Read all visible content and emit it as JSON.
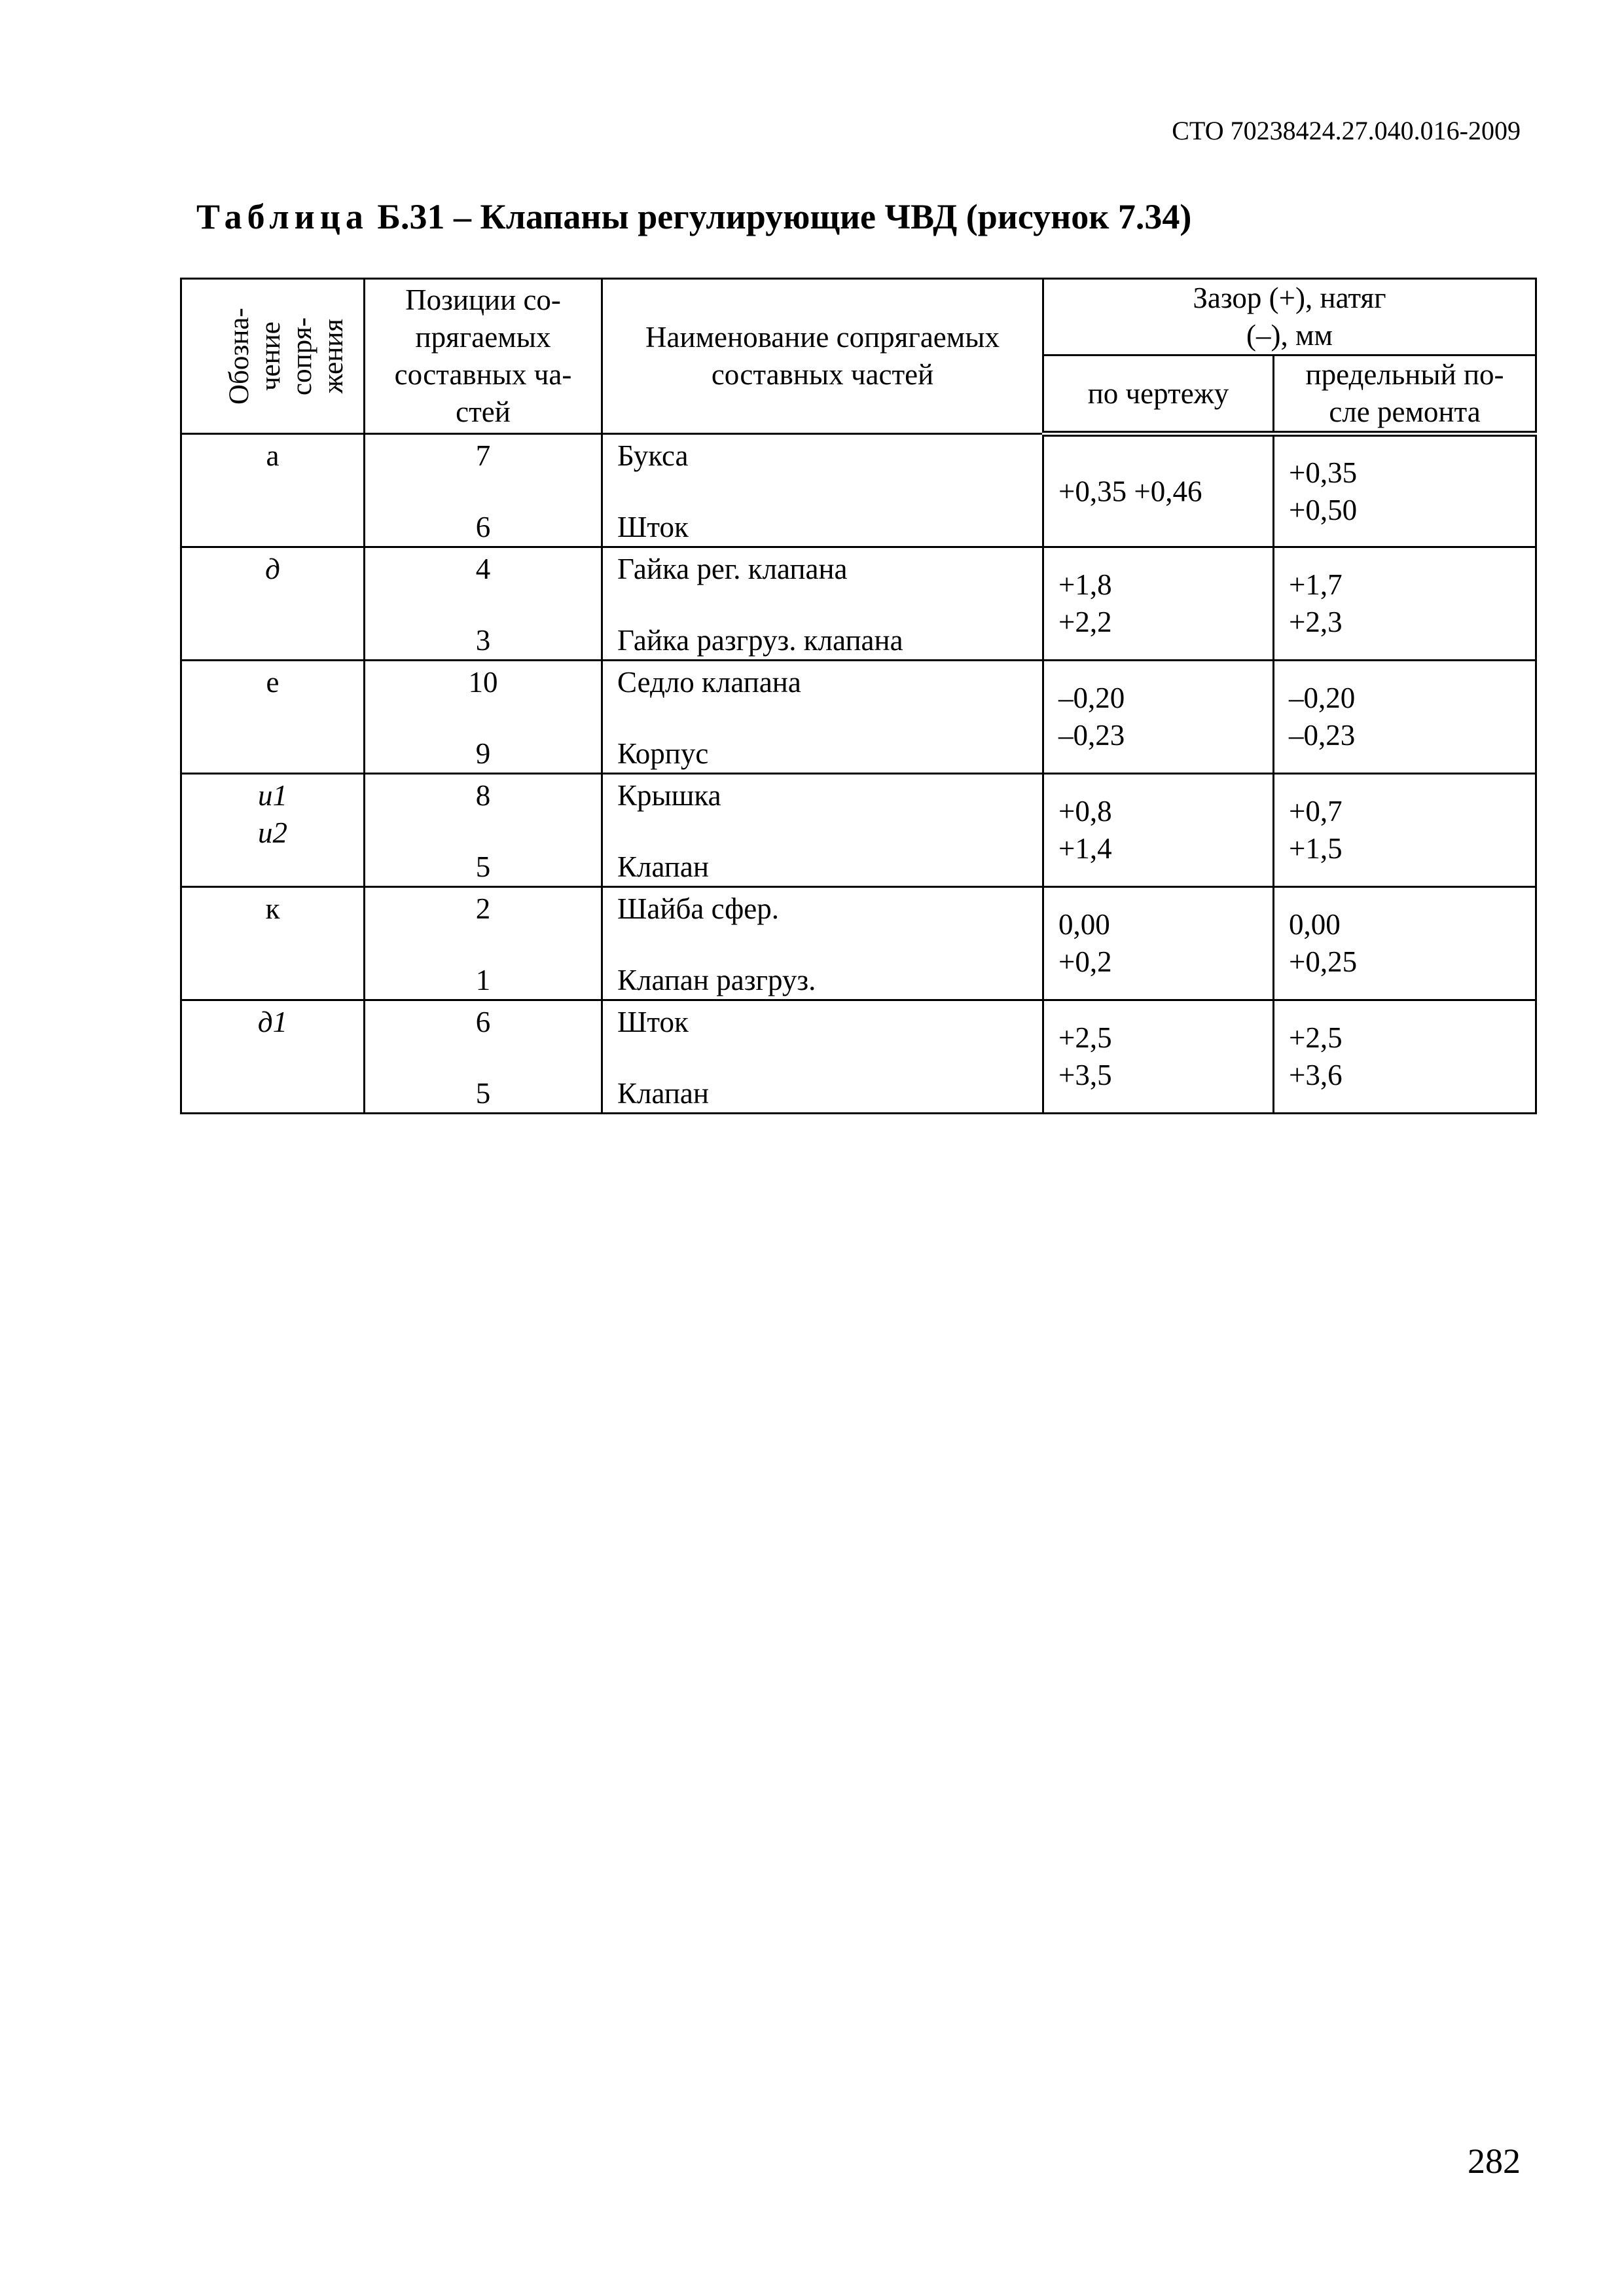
{
  "header": {
    "doc_code": "СТО 70238424.27.040.016-2009"
  },
  "title": {
    "prefix": "Таблица",
    "text": "Б.31 – Клапаны регулирующие ЧВД (рисунок 7.34)"
  },
  "table": {
    "headers": {
      "designation": "Обозна-чение сопря-жения",
      "positions": "Позиции со-прягаемых составных ча-стей",
      "names": "Наименование сопрягаемых составных частей",
      "clearance": "Зазор (+), натяг (–), мм",
      "by_drawing": "по чертежу",
      "limit_after_repair": "предельный по-сле ремонта"
    },
    "rows": [
      {
        "designation": "а",
        "italic": false,
        "pos_top": "7",
        "pos_bottom": "6",
        "name_top": "Букса",
        "name_bottom": "Шток",
        "by_drawing": "+0,35 +0,46",
        "limit": "+0,35\n+0,50"
      },
      {
        "designation": "д",
        "italic": true,
        "pos_top": "4",
        "pos_bottom": "3",
        "name_top": "Гайка рег. клапана",
        "name_bottom": "Гайка разгруз. клапана",
        "by_drawing": "+1,8\n+2,2",
        "limit": "+1,7\n+2,3"
      },
      {
        "designation": "е",
        "italic": false,
        "pos_top": "10",
        "pos_bottom": "9",
        "name_top": "Седло клапана",
        "name_bottom": "Корпус",
        "by_drawing": "–0,20\n–0,23",
        "limit": "–0,20\n–0,23"
      },
      {
        "designation": "и1\nи2",
        "italic": true,
        "pos_top": "8",
        "pos_bottom": "5",
        "name_top": "Крышка",
        "name_bottom": "Клапан",
        "by_drawing": "+0,8\n+1,4",
        "limit": "+0,7\n+1,5"
      },
      {
        "designation": "к",
        "italic": false,
        "pos_top": "2",
        "pos_bottom": "1",
        "name_top": "Шайба сфер.",
        "name_bottom": "Клапан разгруз.",
        "by_drawing": "0,00\n+0,2",
        "limit": "0,00\n+0,25"
      },
      {
        "designation": "д1",
        "italic": true,
        "pos_top": "6",
        "pos_bottom": "5",
        "name_top": "Шток",
        "name_bottom": "Клапан",
        "by_drawing": "+2,5\n+3,5",
        "limit": "+2,5\n+3,6"
      }
    ]
  },
  "footer": {
    "page_number": "282"
  }
}
